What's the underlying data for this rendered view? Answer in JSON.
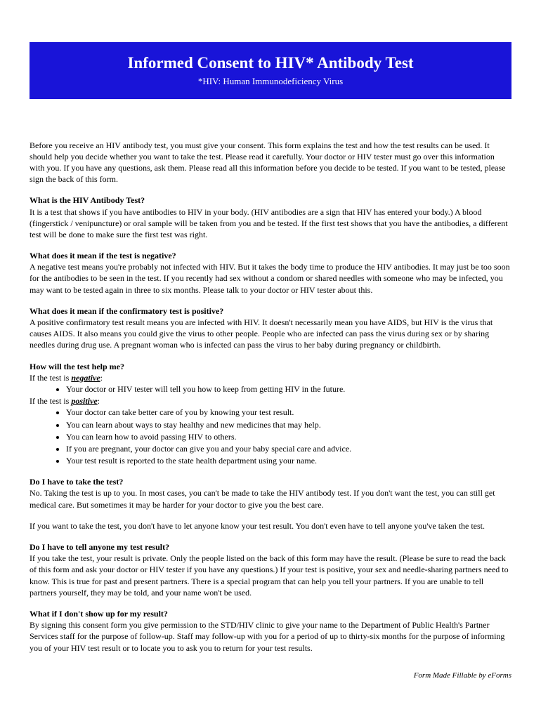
{
  "header": {
    "title": "Informed Consent to HIV* Antibody Test",
    "subtitle": "*HIV: Human Immunodeficiency Virus"
  },
  "intro": "Before you receive an HIV antibody test, you must give your consent. This form explains the test and how the test results can be used. It should help you decide whether you want to take the test. Please read it carefully. Your doctor or HIV tester must go over this information with you. If you have any questions, ask them. Please read all this information before you decide to be tested. If you want to be tested, please sign the back of this form.",
  "sections": {
    "s1": {
      "heading": "What is the HIV Antibody Test?",
      "body": "It is a test that shows if you have antibodies to HIV in your body. (HIV antibodies are a sign that HIV has entered your body.) A blood (fingerstick / venipuncture) or oral sample will be taken from you and be tested. If the first test shows that you have the antibodies, a different test will be done to make sure the first test was right."
    },
    "s2": {
      "heading": "What does it mean if the test is negative?",
      "body": "A negative test means you're probably not infected with HIV. But it takes the body time to produce the HIV antibodies. It may just be too soon for the antibodies to be seen in the test. If you recently had sex without a condom or shared needles with someone who may be infected, you may want to be tested again in three to six months. Please talk to your doctor or HIV tester about this."
    },
    "s3": {
      "heading": "What does it mean if the confirmatory test is positive?",
      "body": "A positive confirmatory test result means you are infected with HIV. It doesn't necessarily mean you have AIDS, but HIV is the virus that causes AIDS. It also means you could give the virus to other people. People who are infected can pass the virus during sex or by sharing needles during drug use. A pregnant woman who is infected can pass the virus to her baby during pregnancy or childbirth."
    },
    "s4": {
      "heading": "How will the test help me?",
      "neg_prefix": "If the test is ",
      "neg_word": "negative",
      "neg_suffix": ":",
      "neg_bullets": [
        "Your doctor or HIV tester will tell you how to keep from getting HIV in the future."
      ],
      "pos_prefix": "If the test is ",
      "pos_word": "positive",
      "pos_suffix": ":",
      "pos_bullets": [
        "Your doctor can take better care of you by knowing your test result.",
        "You can learn about ways to stay healthy and new medicines that may help.",
        "You can learn how to avoid passing HIV to others.",
        "If you are pregnant, your doctor can give you and your baby special care and advice.",
        "Your test result is reported to the state health department using your name."
      ]
    },
    "s5": {
      "heading": "Do I have to take the test?",
      "body": "No. Taking the test is up to you.  In most cases, you can't be made to take the HIV antibody test. If you don't want the test, you can still get medical care. But sometimes it may be harder for your doctor to give you the best care.",
      "body2": "If you want to take the test, you don't have to let anyone know your test result. You don't even have to tell anyone you've taken the test."
    },
    "s6": {
      "heading": "Do I have to tell anyone my test result?",
      "body": "If you take the test, your result is private. Only the people listed on the back of this form may have the result.  (Please be sure to read the back of this form and ask your doctor or HIV tester if you have any questions.) If your test is positive, your sex and needle-sharing partners need to know. This is true for past and present partners. There is a special program that can help you tell your partners. If you are unable to tell partners yourself, they may be told, and your name won't be used."
    },
    "s7": {
      "heading": "What if I don't show up for my result?",
      "body": "By signing this consent form you give permission to the STD/HIV clinic to give your name to the Department of Public Health's Partner Services staff for the purpose of follow-up. Staff may follow-up with you for a period of up to thirty-six months for the purpose of informing you of your HIV test result or to locate you to ask you to return for your test results."
    }
  },
  "footer": "Form Made Fillable by eForms"
}
